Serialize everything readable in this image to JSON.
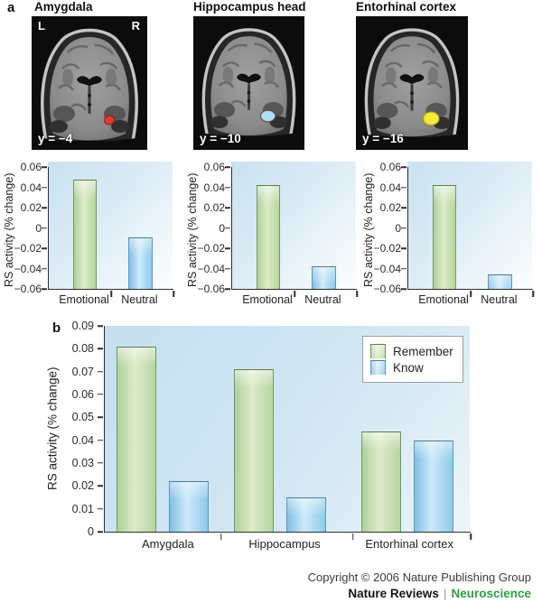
{
  "panel_a": {
    "label": "a",
    "brains": [
      {
        "title": "Amygdala",
        "left_label": "L",
        "right_label": "R",
        "slice_label": "y = −4",
        "highlight_color": "#e23b2c"
      },
      {
        "title": "Hippocampus head",
        "slice_label": "y = −10",
        "highlight_color": "#a9e3f3"
      },
      {
        "title": "Entorhinal cortex",
        "slice_label": "y = −16",
        "highlight_color": "#f4ea39"
      }
    ]
  },
  "panel_b": {
    "label": "b"
  },
  "chart_data": [
    {
      "type": "bar",
      "region": "Amygdala",
      "categories": [
        "Emotional",
        "Neutral"
      ],
      "values": [
        0.048,
        -0.009
      ],
      "bar_colors": [
        "green",
        "blue"
      ],
      "ylabel": "RS activity (% change)",
      "ylim": [
        -0.06,
        0.06
      ],
      "yticks": [
        {
          "v": 0.06,
          "label": "0.06"
        },
        {
          "v": 0.04,
          "label": "0.04"
        },
        {
          "v": 0.02,
          "label": "0.02"
        },
        {
          "v": 0,
          "label": "0"
        },
        {
          "v": -0.02,
          "label": "−0.02"
        },
        {
          "v": -0.04,
          "label": "−0.04"
        },
        {
          "v": -0.06,
          "label": "−0.06"
        }
      ]
    },
    {
      "type": "bar",
      "region": "Hippocampus head",
      "categories": [
        "Emotional",
        "Neutral"
      ],
      "values": [
        0.042,
        -0.038
      ],
      "bar_colors": [
        "green",
        "blue"
      ],
      "ylabel": "RS activity (% change)",
      "ylim": [
        -0.06,
        0.06
      ],
      "yticks": [
        {
          "v": 0.06,
          "label": "0.06"
        },
        {
          "v": 0.04,
          "label": "0.04"
        },
        {
          "v": 0.02,
          "label": "0.02"
        },
        {
          "v": 0,
          "label": "0"
        },
        {
          "v": -0.02,
          "label": "−0.02"
        },
        {
          "v": -0.04,
          "label": "−0.04"
        },
        {
          "v": -0.06,
          "label": "−0.06"
        }
      ]
    },
    {
      "type": "bar",
      "region": "Entorhinal cortex",
      "categories": [
        "Emotional",
        "Neutral"
      ],
      "values": [
        0.042,
        -0.046
      ],
      "bar_colors": [
        "green",
        "blue"
      ],
      "ylabel": "RS activity (% change)",
      "ylim": [
        -0.06,
        0.06
      ],
      "yticks": [
        {
          "v": 0.06,
          "label": "0.06"
        },
        {
          "v": 0.04,
          "label": "0.04"
        },
        {
          "v": 0.02,
          "label": "0.02"
        },
        {
          "v": 0,
          "label": "0"
        },
        {
          "v": -0.02,
          "label": "−0.02"
        },
        {
          "v": -0.04,
          "label": "−0.04"
        },
        {
          "v": -0.06,
          "label": "−0.06"
        }
      ]
    },
    {
      "type": "bar",
      "categories": [
        "Amygdala",
        "Hippocampus",
        "Entorhinal cortex"
      ],
      "series": [
        {
          "name": "Remember",
          "color": "green",
          "values": [
            0.081,
            0.071,
            0.044
          ]
        },
        {
          "name": "Know",
          "color": "blue",
          "values": [
            0.022,
            0.015,
            0.04
          ]
        }
      ],
      "ylabel": "RS activity (% change)",
      "ylim": [
        0,
        0.09
      ],
      "legend_position": "top-right",
      "yticks": [
        {
          "v": 0.09,
          "label": "0.09"
        },
        {
          "v": 0.08,
          "label": "0.08"
        },
        {
          "v": 0.07,
          "label": "0.07"
        },
        {
          "v": 0.06,
          "label": "0.06"
        },
        {
          "v": 0.05,
          "label": "0.05"
        },
        {
          "v": 0.04,
          "label": "0.04"
        },
        {
          "v": 0.03,
          "label": "0.03"
        },
        {
          "v": 0.02,
          "label": "0.02"
        },
        {
          "v": 0.01,
          "label": "0.01"
        },
        {
          "v": 0,
          "label": "0"
        }
      ]
    }
  ],
  "footer": {
    "copyright": "Copyright © 2006 Nature Publishing Group",
    "brand": "Nature Reviews",
    "separator": "|",
    "section": "Neuroscience"
  }
}
